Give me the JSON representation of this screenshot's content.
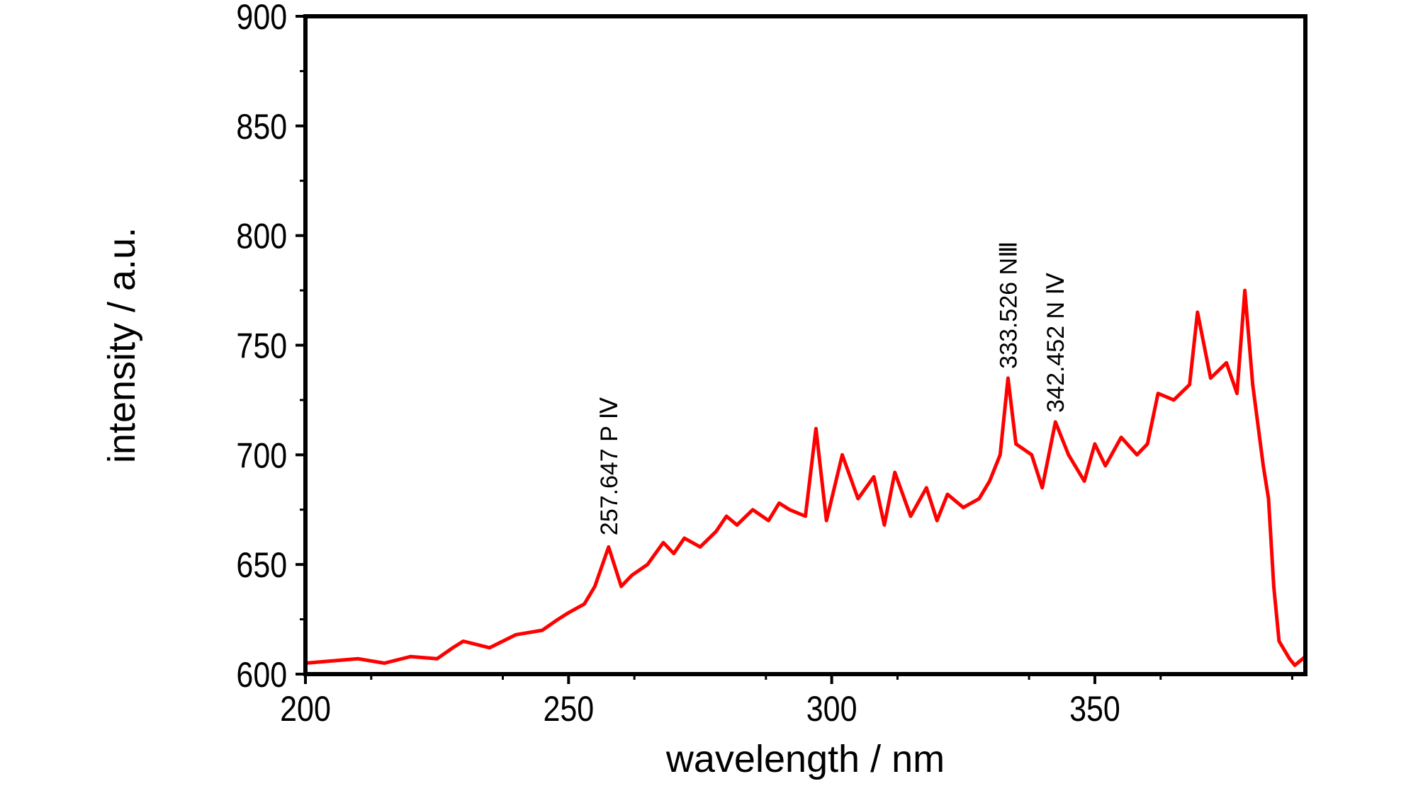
{
  "chart_data": {
    "type": "line",
    "title": "",
    "xlabel": "wavelength / nm",
    "ylabel": "intensity / a.u.",
    "xlim": [
      200,
      390
    ],
    "ylim": [
      600,
      900
    ],
    "x_ticks": [
      200,
      250,
      300,
      350
    ],
    "x_tick_labels": [
      "200",
      "250",
      "300",
      "350"
    ],
    "y_ticks": [
      600,
      650,
      700,
      750,
      800,
      850,
      900
    ],
    "y_tick_labels": [
      "600",
      "650",
      "700",
      "750",
      "800",
      "850",
      "900"
    ],
    "grid": false,
    "legend": "none",
    "line_color": "#ff0000",
    "series": [
      {
        "x": [
          200,
          205,
          210,
          215,
          220,
          225,
          228,
          230,
          235,
          240,
          245,
          248,
          250,
          253,
          255,
          257.6,
          260,
          262,
          265,
          268,
          270,
          272,
          275,
          278,
          280,
          282,
          285,
          288,
          290,
          292,
          295,
          297,
          299,
          302,
          305,
          308,
          310,
          312,
          315,
          318,
          320,
          322,
          325,
          328,
          330,
          332,
          333.5,
          335,
          338,
          340,
          342.5,
          345,
          348,
          350,
          352,
          355,
          358,
          360,
          362,
          365,
          368,
          369.5,
          372,
          375,
          377,
          378.5,
          380,
          382,
          383,
          384,
          385,
          387,
          388,
          390
        ],
        "y": [
          605,
          606,
          607,
          605,
          608,
          607,
          612,
          615,
          612,
          618,
          620,
          625,
          628,
          632,
          640,
          658,
          640,
          645,
          650,
          660,
          655,
          662,
          658,
          665,
          672,
          668,
          675,
          670,
          678,
          675,
          672,
          712,
          670,
          700,
          680,
          690,
          668,
          692,
          672,
          685,
          670,
          682,
          676,
          680,
          688,
          700,
          735,
          705,
          700,
          685,
          715,
          700,
          688,
          705,
          695,
          708,
          700,
          705,
          728,
          725,
          732,
          765,
          735,
          742,
          728,
          775,
          732,
          695,
          680,
          640,
          615,
          607,
          604,
          608
        ]
      }
    ],
    "annotations": [
      {
        "text": "257.647 P Ⅳ",
        "x": 257.647,
        "y": 660
      },
      {
        "text": "333.526 NⅢ",
        "x": 333.526,
        "y": 736
      },
      {
        "text": "342.452 N Ⅳ",
        "x": 342.452,
        "y": 716
      }
    ]
  }
}
